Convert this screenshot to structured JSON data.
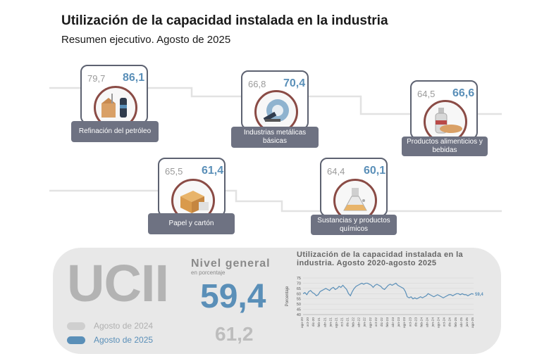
{
  "header": {
    "title": "Utilización de la capacidad instalada en la industria",
    "subtitle": "Resumen ejecutivo. Agosto de 2025"
  },
  "sectors": [
    {
      "name": "Refinación del petróleo",
      "prev": "79,7",
      "curr": "86,1",
      "icon": "oil-refining-icon"
    },
    {
      "name": "Industrias metálicas básicas",
      "prev": "66,8",
      "curr": "70,4",
      "icon": "metal-industry-icon"
    },
    {
      "name": "Productos alimenticios y bebidas",
      "prev": "64,5",
      "curr": "66,6",
      "icon": "food-beverage-icon"
    },
    {
      "name": "Papel y cartón",
      "prev": "65,5",
      "curr": "61,4",
      "icon": "paper-box-icon"
    },
    {
      "name": "Sustancias y productos químicos",
      "prev": "64,4",
      "curr": "60,1",
      "icon": "chemical-flask-icon"
    }
  ],
  "summary": {
    "acronym": "UCII",
    "legend_prev": "Agosto de 2024",
    "legend_curr": "Agosto de 2025",
    "nivel_title": "Nivel general",
    "nivel_unit": "en porcentaje",
    "value_curr": "59,4",
    "value_prev": "61,2"
  },
  "colors": {
    "current": "#5a8fb8",
    "previous": "#bdbdbd",
    "label_bg": "#6e7282",
    "ring": "#8a4b45"
  },
  "chart_data": {
    "type": "line",
    "title": "Utilización de la capacidad instalada en la industria. Agosto 2020-agosto 2025",
    "ylabel": "Porcentaje",
    "ylim": [
      40,
      75
    ],
    "yticks": [
      40,
      45,
      50,
      55,
      60,
      65,
      70,
      75
    ],
    "last_label": "59,4",
    "x_tick_labels": [
      "ago-20",
      "oct-20",
      "dic-20",
      "feb-21",
      "abr-21",
      "jun-21",
      "ago-21",
      "oct-21",
      "dic-21",
      "feb-22",
      "abr-22",
      "jun-22",
      "ago-22",
      "oct-22",
      "dic-22",
      "feb-23",
      "abr-23",
      "jun-23",
      "ago-23",
      "oct-23",
      "dic-23",
      "feb-24",
      "abr-24",
      "jun-24",
      "ago-24",
      "oct-24",
      "dic-24",
      "feb-25",
      "abr-25",
      "jun-25",
      "ago-25"
    ],
    "values": [
      60,
      61,
      59,
      62,
      63,
      61,
      60,
      58,
      59,
      62,
      63,
      64,
      65,
      64,
      63,
      65,
      66,
      64,
      65,
      67,
      66,
      68,
      66,
      64,
      60,
      58,
      62,
      65,
      67,
      68,
      69,
      70,
      69,
      70,
      70,
      69,
      68,
      66,
      68,
      69,
      68,
      67,
      65,
      64,
      66,
      68,
      69,
      68,
      69,
      70,
      68,
      67,
      66,
      65,
      62,
      57,
      56,
      57,
      55,
      56,
      55,
      56,
      57,
      56,
      57,
      58,
      60,
      59,
      58,
      57,
      58,
      59,
      58,
      57,
      56,
      57,
      58,
      59,
      59,
      58,
      59,
      60,
      60,
      59,
      60,
      59,
      59,
      58,
      59,
      60,
      59.4
    ]
  }
}
